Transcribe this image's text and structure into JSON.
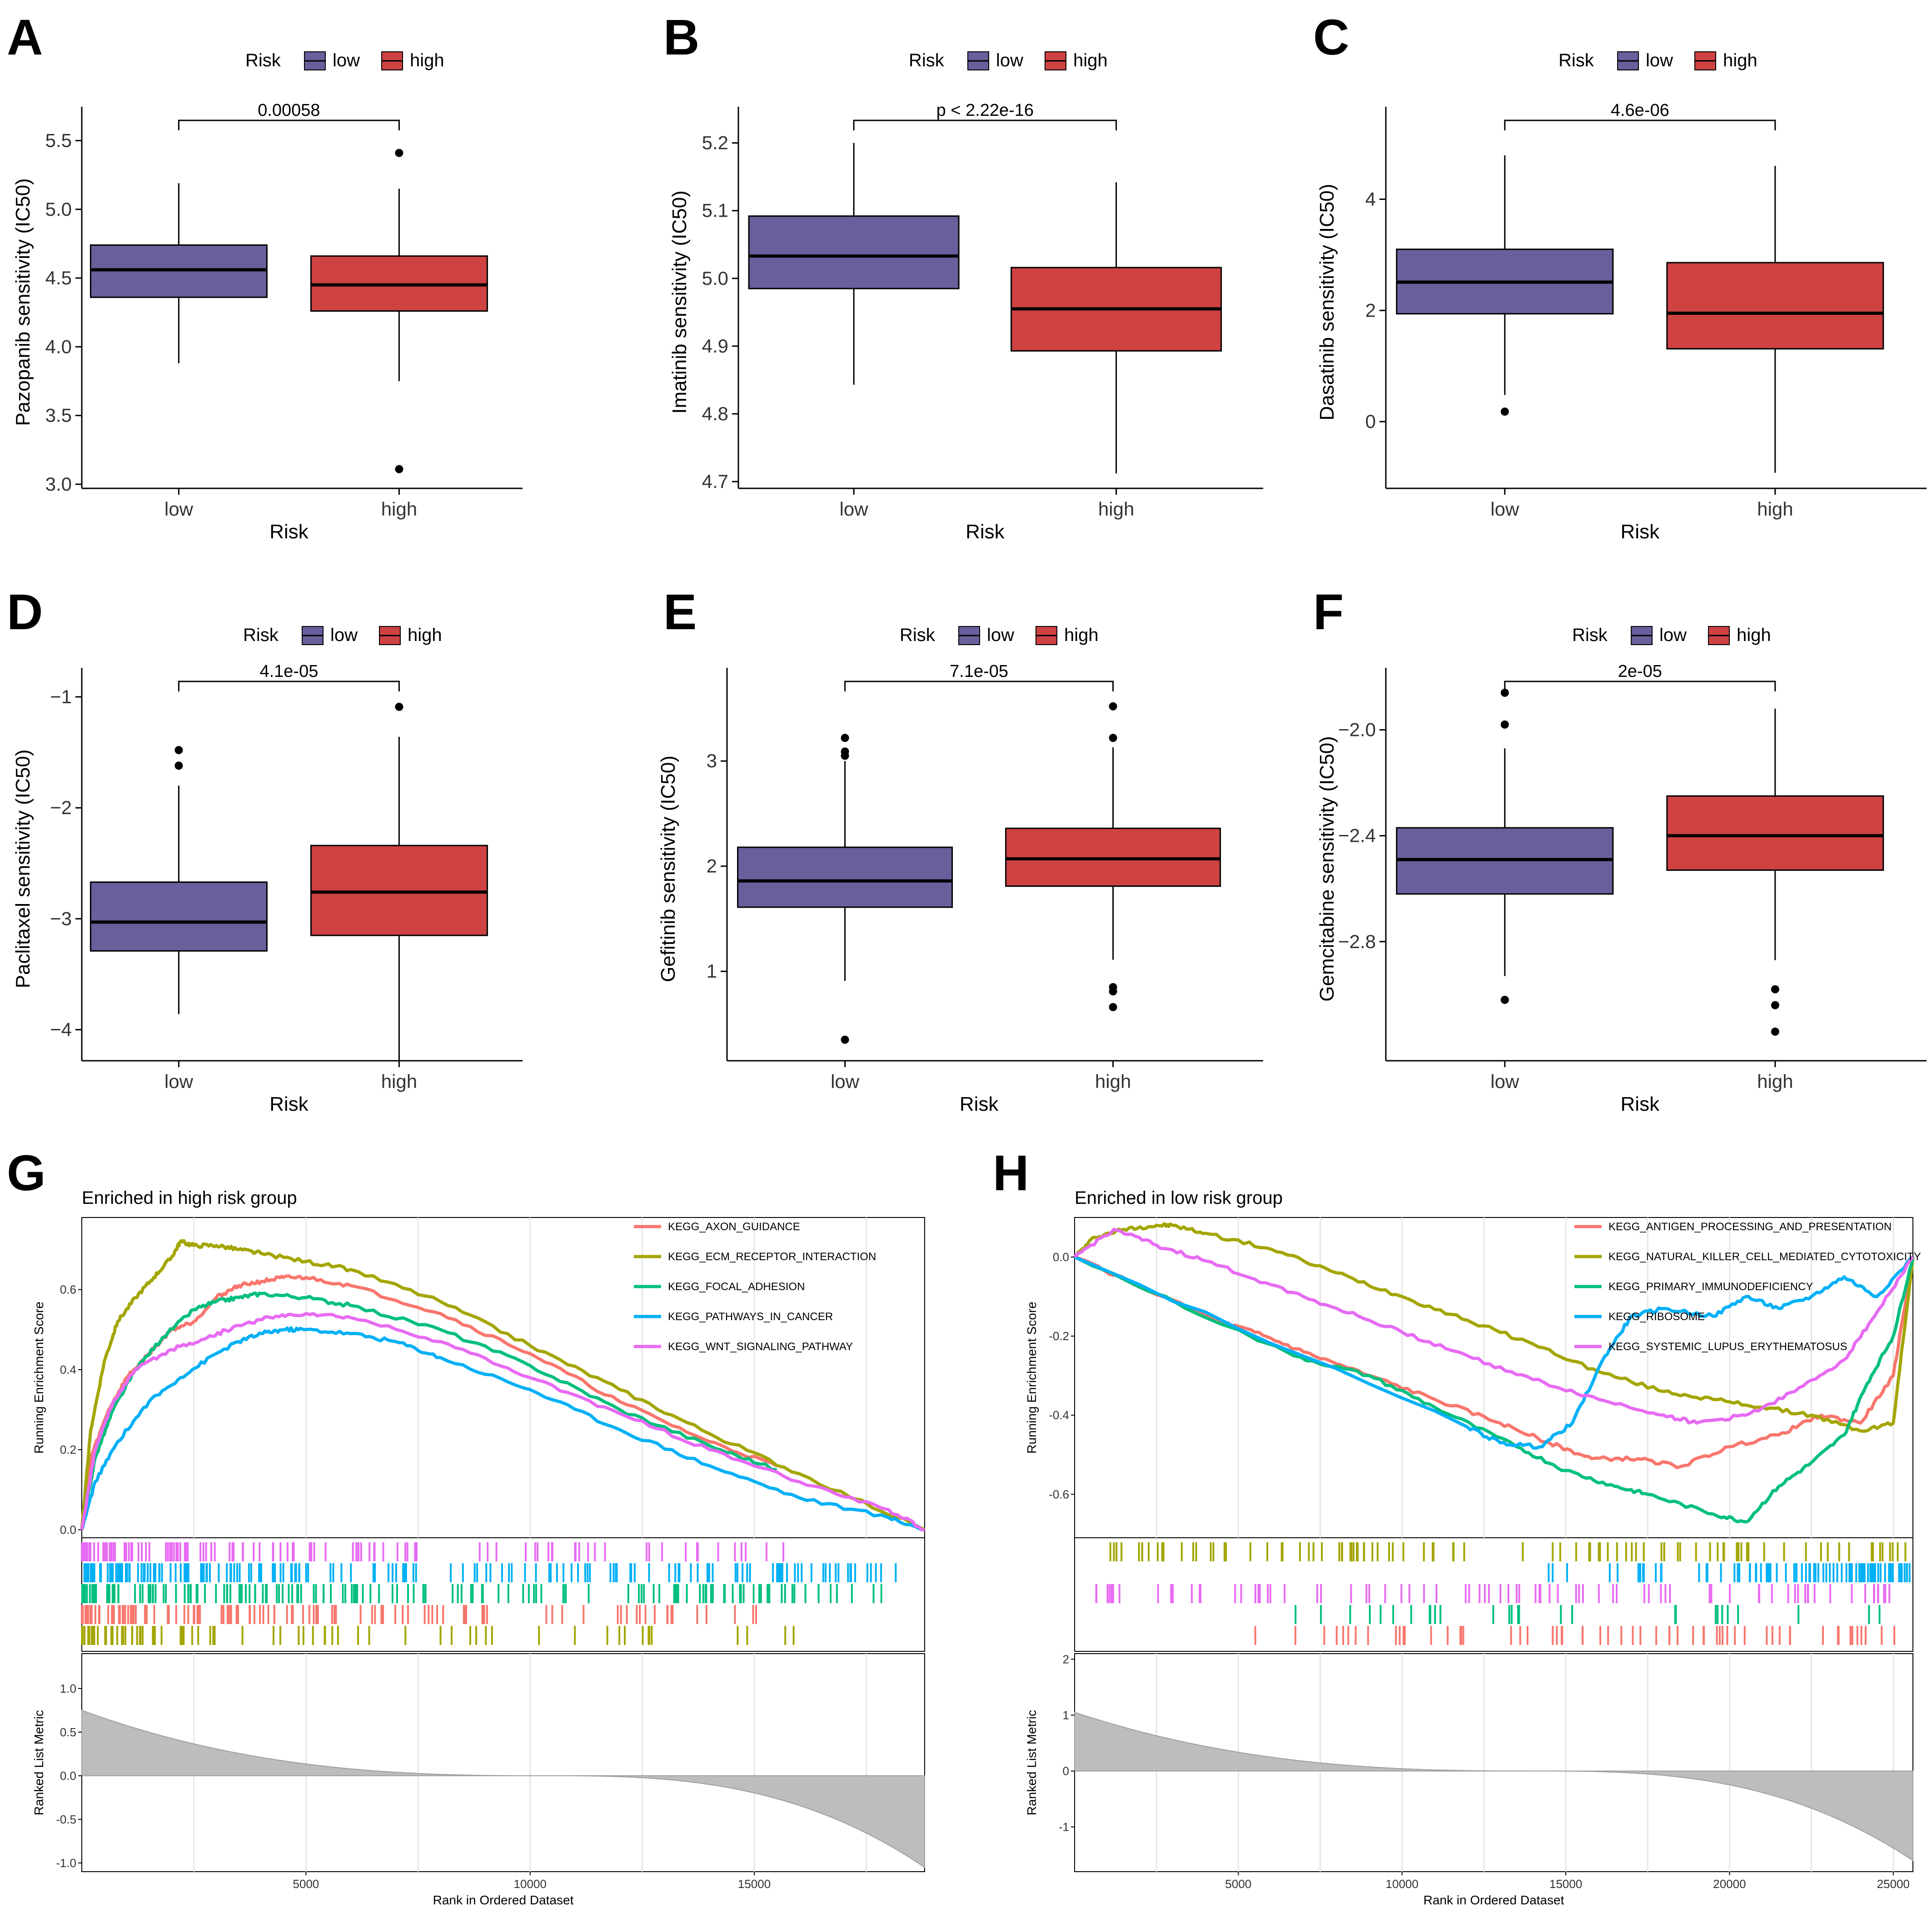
{
  "colors": {
    "low": "#6A5E9C",
    "high": "#CE4242",
    "strip_bg": "#ffffff"
  },
  "chart_data": [
    {
      "id": "A",
      "type": "box",
      "panel_label": "A",
      "legend_title": "Risk",
      "legend_entries": [
        "low",
        "high"
      ],
      "ylabel": "Pazopanib sensitivity (IC50)",
      "xlabel": "Risk",
      "categories": [
        "low",
        "high"
      ],
      "ylim": [
        2.97,
        5.68
      ],
      "yticks": [
        "3.0",
        "3.5",
        "4.0",
        "4.5",
        "5.0",
        "5.5"
      ],
      "ytick_values": [
        3.0,
        3.5,
        4.0,
        4.5,
        5.0,
        5.5
      ],
      "pvalue": "0.00058",
      "boxes": [
        {
          "group": "low",
          "min": 3.88,
          "q1": 4.36,
          "median": 4.56,
          "q3": 4.74,
          "max": 5.19,
          "outliers": []
        },
        {
          "group": "high",
          "min": 3.75,
          "q1": 4.26,
          "median": 4.45,
          "q3": 4.66,
          "max": 5.15,
          "outliers": [
            5.41,
            3.11
          ]
        }
      ]
    },
    {
      "id": "B",
      "type": "box",
      "panel_label": "B",
      "legend_title": "Risk",
      "legend_entries": [
        "low",
        "high"
      ],
      "ylabel": "Imatinib sensitivity (IC50)",
      "xlabel": "Risk",
      "categories": [
        "low",
        "high"
      ],
      "ylim": [
        4.69,
        5.24
      ],
      "yticks": [
        "4.7",
        "4.8",
        "4.9",
        "5.0",
        "5.1",
        "5.2"
      ],
      "ytick_values": [
        4.7,
        4.8,
        4.9,
        5.0,
        5.1,
        5.2
      ],
      "pvalue": "p < 2.22e-16",
      "boxes": [
        {
          "group": "low",
          "min": 4.843,
          "q1": 4.985,
          "median": 5.033,
          "q3": 5.092,
          "max": 5.2,
          "outliers": []
        },
        {
          "group": "high",
          "min": 4.712,
          "q1": 4.893,
          "median": 4.955,
          "q3": 5.016,
          "max": 5.142,
          "outliers": []
        }
      ]
    },
    {
      "id": "C",
      "type": "box",
      "panel_label": "C",
      "legend_title": "Risk",
      "legend_entries": [
        "low",
        "high"
      ],
      "ylabel": "Dasatinib sensitivity (IC50)",
      "xlabel": "Risk",
      "categories": [
        "low",
        "high"
      ],
      "ylim": [
        -1.2,
        5.5
      ],
      "yticks": [
        "0",
        "2",
        "4"
      ],
      "ytick_values": [
        0,
        2,
        4
      ],
      "pvalue": "4.6e-06",
      "boxes": [
        {
          "group": "low",
          "min": 0.48,
          "q1": 1.94,
          "median": 2.51,
          "q3": 3.1,
          "max": 4.79,
          "outliers": [
            0.18
          ]
        },
        {
          "group": "high",
          "min": -0.92,
          "q1": 1.31,
          "median": 1.95,
          "q3": 2.86,
          "max": 4.6,
          "outliers": []
        }
      ]
    },
    {
      "id": "D",
      "type": "box",
      "panel_label": "D",
      "legend_title": "Risk",
      "legend_entries": [
        "low",
        "high"
      ],
      "ylabel": "Paclitaxel sensitivity (IC50)",
      "xlabel": "Risk",
      "categories": [
        "low",
        "high"
      ],
      "ylim": [
        -4.28,
        -0.82
      ],
      "yticks": [
        "−4",
        "−3",
        "−2",
        "−1"
      ],
      "ytick_values": [
        -4,
        -3,
        -2,
        -1
      ],
      "pvalue": "4.1e-05",
      "boxes": [
        {
          "group": "low",
          "min": -3.86,
          "q1": -3.29,
          "median": -3.03,
          "q3": -2.67,
          "max": -1.8,
          "outliers": [
            -1.48,
            -1.62
          ]
        },
        {
          "group": "high",
          "min": -4.28,
          "q1": -3.15,
          "median": -2.76,
          "q3": -2.34,
          "max": -1.36,
          "outliers": [
            -1.09
          ]
        }
      ]
    },
    {
      "id": "E",
      "type": "box",
      "panel_label": "E",
      "legend_title": "Risk",
      "legend_entries": [
        "low",
        "high"
      ],
      "ylabel": "Gefitinib sensitivity (IC50)",
      "xlabel": "Risk",
      "categories": [
        "low",
        "high"
      ],
      "ylim": [
        0.15,
        3.8
      ],
      "yticks": [
        "1",
        "2",
        "3"
      ],
      "ytick_values": [
        1,
        2,
        3
      ],
      "pvalue": "7.1e-05",
      "boxes": [
        {
          "group": "low",
          "min": 0.91,
          "q1": 1.61,
          "median": 1.86,
          "q3": 2.18,
          "max": 3.0,
          "outliers": [
            0.35,
            3.05,
            3.09,
            3.22
          ]
        },
        {
          "group": "high",
          "min": 1.11,
          "q1": 1.81,
          "median": 2.07,
          "q3": 2.36,
          "max": 3.13,
          "outliers": [
            0.66,
            0.81,
            0.85,
            3.22,
            3.52
          ]
        }
      ]
    },
    {
      "id": "F",
      "type": "box",
      "panel_label": "F",
      "legend_title": "Risk",
      "legend_entries": [
        "low",
        "high"
      ],
      "ylabel": "Gemcitabine sensitivity (IC50)",
      "xlabel": "Risk",
      "categories": [
        "low",
        "high"
      ],
      "ylim": [
        -3.25,
        -1.8
      ],
      "yticks": [
        "−2.8",
        "−2.4",
        "−2.0"
      ],
      "ytick_values": [
        -2.8,
        -2.4,
        -2.0
      ],
      "pvalue": "2e-05",
      "boxes": [
        {
          "group": "low",
          "min": -2.93,
          "q1": -2.62,
          "median": -2.49,
          "q3": -2.37,
          "max": -2.07,
          "outliers": [
            -1.86,
            -1.98,
            -3.02
          ]
        },
        {
          "group": "high",
          "min": -2.87,
          "q1": -2.53,
          "median": -2.4,
          "q3": -2.25,
          "max": -1.92,
          "outliers": [
            -2.98,
            -3.04,
            -3.14
          ]
        }
      ]
    },
    {
      "id": "G",
      "type": "line",
      "panel_label": "G",
      "title": "Enriched in high risk group",
      "ylabel": "Running Enrichment Score",
      "xlabel": "Rank in Ordered Dataset",
      "rank_ylabel": "Ranked List Metric",
      "xlim": [
        0,
        18800
      ],
      "ylim": [
        -0.02,
        0.78
      ],
      "xticks": [
        "5000",
        "10000",
        "15000"
      ],
      "xtick_values": [
        5000,
        10000,
        15000
      ],
      "yticks": [
        "0.0",
        "0.2",
        "0.4",
        "0.6"
      ],
      "ytick_values": [
        0.0,
        0.2,
        0.4,
        0.6
      ],
      "rank_ylim": [
        -1.1,
        1.4
      ],
      "rank_yticks": [
        "-1.0",
        "-0.5",
        "0.0",
        "0.5",
        "1.0"
      ],
      "rank_ytick_values": [
        -1.0,
        -0.5,
        0.0,
        0.5,
        1.0
      ],
      "rank_max": 0.75,
      "rank_min": -1.05,
      "series": [
        {
          "name": "KEGG_AXON_GUIDANCE",
          "color": "#F8766D",
          "x": [
            0,
            200,
            600,
            1000,
            1500,
            2000,
            2500,
            3000,
            3500,
            4000,
            4500,
            5000,
            6000,
            8000,
            10000,
            12000,
            14000,
            15500
          ],
          "y": [
            0,
            0.18,
            0.3,
            0.38,
            0.44,
            0.5,
            0.52,
            0.58,
            0.61,
            0.62,
            0.63,
            0.63,
            0.61,
            0.54,
            0.44,
            0.32,
            0.22,
            0.16
          ]
        },
        {
          "name": "KEGG_ECM_RECEPTOR_INTERACTION",
          "color": "#A3A500",
          "x": [
            0,
            200,
            500,
            800,
            1200,
            1600,
            2000,
            2200,
            2500,
            3000,
            3500,
            4000,
            5000,
            6000,
            8000,
            10000,
            12000,
            14000,
            16000,
            18800
          ],
          "y": [
            0,
            0.25,
            0.42,
            0.52,
            0.58,
            0.63,
            0.68,
            0.72,
            0.71,
            0.71,
            0.7,
            0.69,
            0.67,
            0.65,
            0.57,
            0.46,
            0.35,
            0.24,
            0.14,
            0.0
          ]
        },
        {
          "name": "KEGG_FOCAL_ADHESION",
          "color": "#00BF7D",
          "x": [
            0,
            300,
            700,
            1200,
            1800,
            2500,
            3000,
            3500,
            4000,
            5000,
            6000,
            8000,
            10000,
            12000,
            14000,
            15500
          ],
          "y": [
            0,
            0.18,
            0.3,
            0.4,
            0.48,
            0.55,
            0.57,
            0.58,
            0.59,
            0.58,
            0.56,
            0.5,
            0.41,
            0.3,
            0.21,
            0.15
          ]
        },
        {
          "name": "KEGG_PATHWAYS_IN_CANCER",
          "color": "#00B0F6",
          "x": [
            0,
            300,
            800,
            1500,
            2200,
            3000,
            3500,
            4000,
            4500,
            5000,
            6000,
            7000,
            8000,
            10000,
            12000,
            14000,
            16000,
            18000,
            18800
          ],
          "y": [
            0,
            0.12,
            0.22,
            0.32,
            0.38,
            0.44,
            0.47,
            0.49,
            0.5,
            0.5,
            0.49,
            0.47,
            0.43,
            0.35,
            0.25,
            0.16,
            0.08,
            0.03,
            0.0
          ]
        },
        {
          "name": "KEGG_WNT_SIGNALING_PATHWAY",
          "color": "#E76BF3",
          "x": [
            0,
            300,
            700,
            1200,
            2000,
            2800,
            3500,
            4200,
            5000,
            6000,
            8000,
            10000,
            12000,
            14000,
            16000,
            18000,
            18800
          ],
          "y": [
            0,
            0.2,
            0.32,
            0.4,
            0.45,
            0.48,
            0.51,
            0.53,
            0.54,
            0.53,
            0.47,
            0.38,
            0.29,
            0.2,
            0.12,
            0.05,
            0.0
          ]
        }
      ],
      "hit_rows": [
        {
          "color": "#E76BF3",
          "count": 110,
          "range": [
            0,
            15800
          ],
          "bias": 1.8
        },
        {
          "color": "#00B0F6",
          "count": 170,
          "range": [
            0,
            18300
          ],
          "bias": 1.6
        },
        {
          "color": "#00BF7D",
          "count": 150,
          "range": [
            0,
            17900
          ],
          "bias": 1.8
        },
        {
          "color": "#F8766D",
          "count": 110,
          "range": [
            0,
            15900
          ],
          "bias": 1.7
        },
        {
          "color": "#A3A500",
          "count": 70,
          "range": [
            0,
            15900
          ],
          "bias": 2.2
        }
      ],
      "gridlines": [
        2500,
        7500,
        12500,
        17500
      ]
    },
    {
      "id": "H",
      "type": "line",
      "panel_label": "H",
      "title": "Enriched in low risk group",
      "ylabel": "Running Enrichment Score",
      "xlabel": "Rank in Ordered Dataset",
      "rank_ylabel": "Ranked List Metric",
      "xlim": [
        0,
        25600
      ],
      "ylim": [
        -0.71,
        0.1
      ],
      "xticks": [
        "5000",
        "10000",
        "15000",
        "20000",
        "25000"
      ],
      "xtick_values": [
        5000,
        10000,
        15000,
        20000,
        25000
      ],
      "yticks": [
        "-0.6",
        "-0.4",
        "-0.2",
        "0.0"
      ],
      "ytick_values": [
        -0.6,
        -0.4,
        -0.2,
        0.0
      ],
      "rank_ylim": [
        -1.8,
        2.1
      ],
      "rank_yticks": [
        "-1",
        "0",
        "1",
        "2"
      ],
      "rank_ytick_values": [
        -1,
        0,
        1,
        2
      ],
      "rank_max": 1.05,
      "rank_min": -1.6,
      "series": [
        {
          "name": "KEGG_ANTIGEN_PROCESSING_AND_PRESENTATION",
          "color": "#F8766D",
          "x": [
            0,
            4300,
            5500,
            7000,
            9000,
            11000,
            13000,
            14500,
            15800,
            17200,
            18500,
            20000,
            21500,
            22800,
            24000,
            25000,
            25600
          ],
          "y": [
            0,
            -0.16,
            -0.19,
            -0.24,
            -0.3,
            -0.36,
            -0.42,
            -0.47,
            -0.51,
            -0.51,
            -0.53,
            -0.48,
            -0.45,
            -0.4,
            -0.42,
            -0.3,
            0.0
          ]
        },
        {
          "name": "KEGG_NATURAL_KILLER_CELL_MEDIATED_CYTOTOXICITY",
          "color": "#A3A500",
          "x": [
            0,
            600,
            1500,
            2500,
            3000,
            4000,
            6000,
            8000,
            10000,
            12000,
            14000,
            16000,
            18000,
            19500,
            21000,
            22500,
            24000,
            25000,
            25600
          ],
          "y": [
            0,
            0.05,
            0.07,
            0.08,
            0.08,
            0.06,
            0.02,
            -0.04,
            -0.1,
            -0.16,
            -0.22,
            -0.29,
            -0.34,
            -0.36,
            -0.38,
            -0.4,
            -0.44,
            -0.42,
            0.0
          ]
        },
        {
          "name": "KEGG_PRIMARY_IMMUNODEFICIENCY",
          "color": "#00BF7D",
          "x": [
            0,
            6700,
            9000,
            11000,
            13500,
            15000,
            16500,
            17500,
            19500,
            20500,
            21500,
            22500,
            23500,
            24200,
            25000,
            25600
          ],
          "y": [
            0,
            -0.25,
            -0.3,
            -0.38,
            -0.48,
            -0.54,
            -0.58,
            -0.6,
            -0.65,
            -0.67,
            -0.58,
            -0.52,
            -0.45,
            -0.32,
            -0.2,
            0.0
          ]
        },
        {
          "name": "KEGG_RIBOSOME",
          "color": "#00B0F6",
          "x": [
            0,
            12000,
            13000,
            14200,
            15200,
            16200,
            17000,
            18000,
            19500,
            20500,
            21500,
            22500,
            23500,
            24500,
            25600
          ],
          "y": [
            0,
            -0.43,
            -0.47,
            -0.48,
            -0.42,
            -0.25,
            -0.15,
            -0.13,
            -0.15,
            -0.1,
            -0.13,
            -0.1,
            -0.05,
            -0.1,
            0.0
          ]
        },
        {
          "name": "KEGG_SYSTEMIC_LUPUS_ERYTHEMATOSUS",
          "color": "#E76BF3",
          "x": [
            0,
            1200,
            2500,
            4000,
            6000,
            8000,
            10000,
            12000,
            14000,
            16000,
            18000,
            19000,
            20500,
            22000,
            23500,
            24500,
            25600
          ],
          "y": [
            0,
            0.07,
            0.03,
            -0.01,
            -0.07,
            -0.13,
            -0.19,
            -0.25,
            -0.31,
            -0.36,
            -0.4,
            -0.42,
            -0.4,
            -0.34,
            -0.26,
            -0.14,
            0.0
          ]
        }
      ],
      "hit_rows": [
        {
          "color": "#A3A500",
          "count": 90,
          "range": [
            800,
            25600
          ],
          "bias": 1.0
        },
        {
          "color": "#00B0F6",
          "count": 80,
          "range": [
            11500,
            25500
          ],
          "bias": 0.4
        },
        {
          "color": "#E76BF3",
          "count": 80,
          "range": [
            300,
            25500
          ],
          "bias": 0.9
        },
        {
          "color": "#00BF7D",
          "count": 30,
          "range": [
            6500,
            25500
          ],
          "bias": 0.8
        },
        {
          "color": "#F8766D",
          "count": 60,
          "range": [
            4200,
            25500
          ],
          "bias": 0.7
        }
      ],
      "gridlines": [
        2500,
        7500,
        12500,
        17500,
        22500
      ]
    }
  ]
}
